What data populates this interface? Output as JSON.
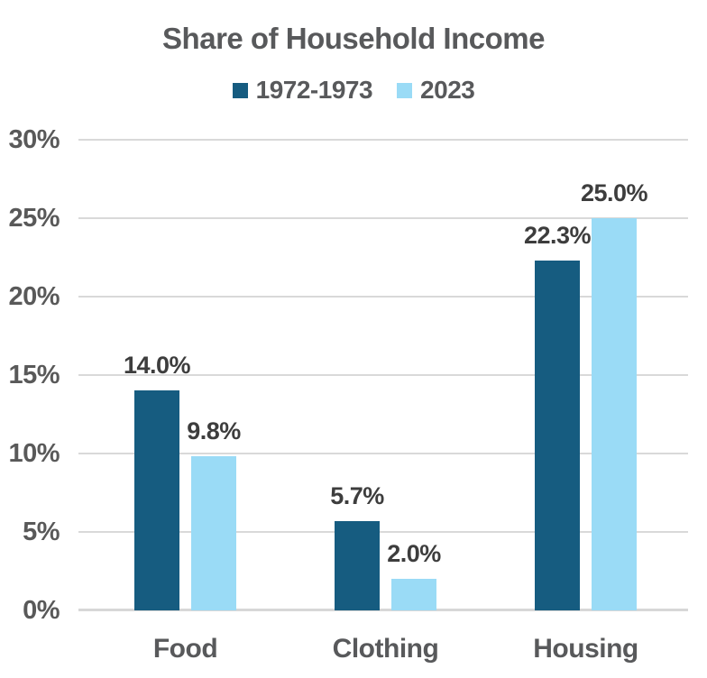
{
  "chart_data": {
    "type": "bar",
    "title": "Share of Household Income",
    "categories": [
      "Food",
      "Clothing",
      "Housing"
    ],
    "series": [
      {
        "name": "1972-1973",
        "color": "#165c80",
        "values": [
          14.0,
          5.7,
          22.3
        ],
        "labels": [
          "14.0%",
          "5.7%",
          "22.3%"
        ]
      },
      {
        "name": "2023",
        "color": "#9adbf6",
        "values": [
          9.8,
          2.0,
          25.0
        ],
        "labels": [
          "9.8%",
          "2.0%",
          "25.0%"
        ]
      }
    ],
    "xlabel": "",
    "ylabel": "",
    "ylim": [
      0,
      30
    ],
    "ytick_step": 5,
    "yticks": [
      "0%",
      "5%",
      "10%",
      "15%",
      "20%",
      "25%",
      "30%"
    ],
    "grid": true,
    "legend_position": "top",
    "colors": {
      "gridline": "#d9d9d9",
      "axis_text": "#595959",
      "data_label_text": "#3d3d3d",
      "title_text": "#58595b",
      "background": "#ffffff"
    }
  }
}
